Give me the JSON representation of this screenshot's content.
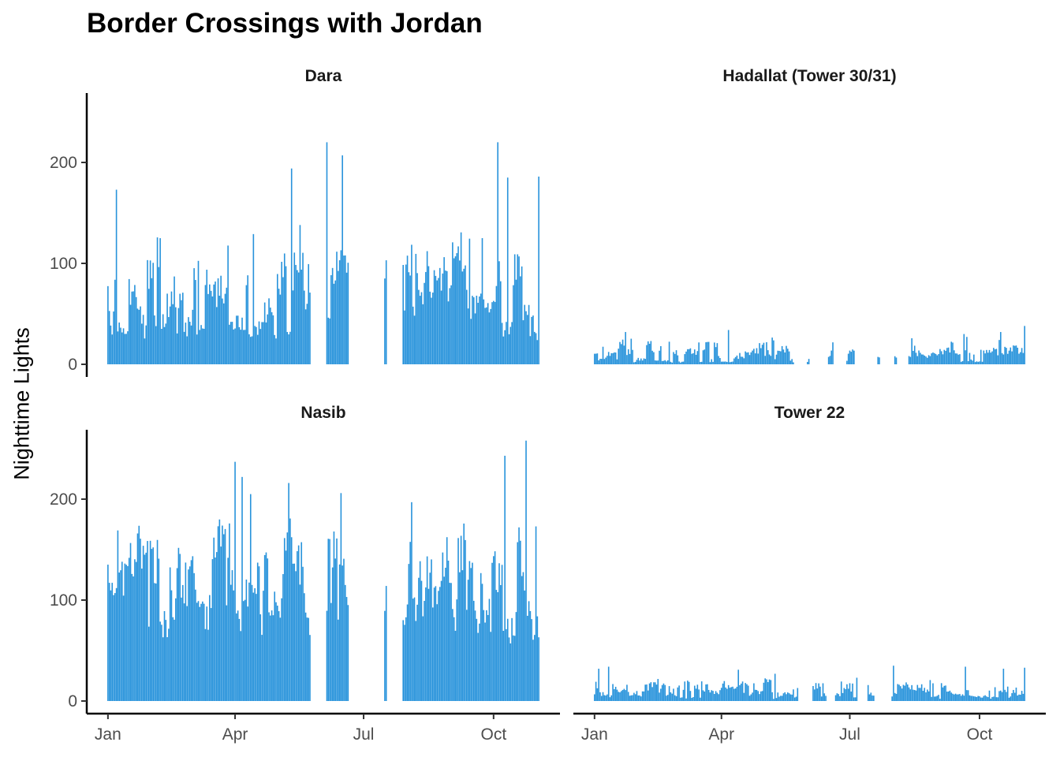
{
  "chart_data": {
    "type": "bar",
    "title": "Border Crossings with Jordan",
    "ylabel": "Nighttime Lights",
    "xlabel": "",
    "color": "#2893DB",
    "ylim": [
      0,
      270
    ],
    "y_ticks": [
      0,
      100,
      200
    ],
    "x_ticks": [
      {
        "label": "Jan",
        "day": 0
      },
      {
        "label": "Apr",
        "day": 90
      },
      {
        "label": "Jul",
        "day": 181
      },
      {
        "label": "Oct",
        "day": 273
      }
    ],
    "x_range_days": [
      -15,
      320
    ],
    "grid": false,
    "facets": [
      {
        "name": "Dara",
        "min": 25,
        "max": 110,
        "scale": 1.0,
        "noise": 0.45,
        "spikes": [
          [
            6,
            173
          ],
          [
            130,
            194
          ],
          [
            155,
            220
          ],
          [
            166,
            207
          ],
          [
            207,
            211
          ],
          [
            276,
            220
          ],
          [
            283,
            185
          ],
          [
            305,
            186
          ],
          [
            136,
            138
          ],
          [
            265,
            125
          ]
        ],
        "gaps": [
          [
            144,
            154
          ],
          [
            171,
            195
          ],
          [
            198,
            208
          ]
        ],
        "end_day": 305
      },
      {
        "name": "Hadallat (Tower 30/31)",
        "min": 2,
        "max": 20,
        "scale": 1.0,
        "noise": 0.6,
        "spikes": [
          [
            22,
            32
          ],
          [
            95,
            34
          ],
          [
            305,
            38
          ],
          [
            262,
            30
          ],
          [
            288,
            32
          ]
        ],
        "gaps": [
          [
            142,
            150
          ],
          [
            153,
            165
          ],
          [
            170,
            178
          ],
          [
            185,
            200
          ],
          [
            203,
            212
          ],
          [
            215,
            222
          ]
        ],
        "end_day": 305
      },
      {
        "name": "Nasib",
        "min": 70,
        "max": 160,
        "scale": 1.0,
        "noise": 0.4,
        "spikes": [
          [
            90,
            237
          ],
          [
            95,
            222
          ],
          [
            101,
            205
          ],
          [
            128,
            216
          ],
          [
            165,
            206
          ],
          [
            215,
            197
          ],
          [
            281,
            243
          ],
          [
            296,
            258
          ],
          [
            303,
            173
          ],
          [
            7,
            169
          ]
        ],
        "gaps": [
          [
            144,
            154
          ],
          [
            171,
            195
          ],
          [
            198,
            208
          ]
        ],
        "end_day": 305
      },
      {
        "name": "Tower 22",
        "min": 2,
        "max": 18,
        "scale": 1.0,
        "noise": 0.6,
        "spikes": [
          [
            3,
            32
          ],
          [
            10,
            34
          ],
          [
            102,
            31
          ],
          [
            128,
            27
          ],
          [
            212,
            35
          ],
          [
            263,
            34
          ],
          [
            305,
            33
          ],
          [
            290,
            32
          ]
        ],
        "gaps": [
          [
            145,
            154
          ],
          [
            165,
            170
          ],
          [
            187,
            193
          ],
          [
            199,
            210
          ]
        ],
        "end_day": 305
      }
    ]
  }
}
